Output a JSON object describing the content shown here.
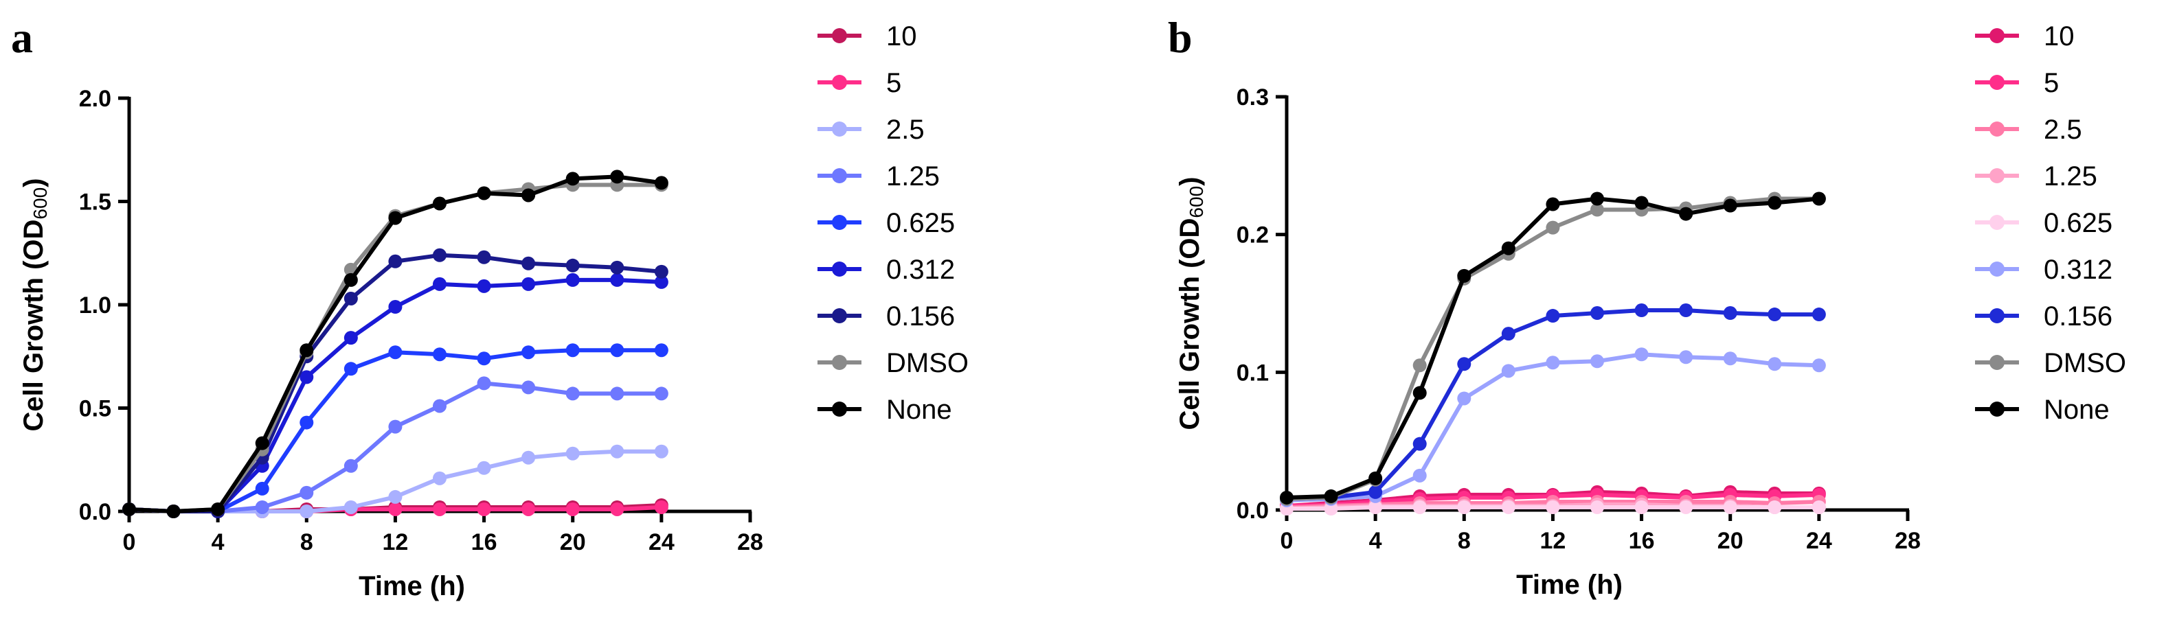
{
  "chart_data": [
    {
      "panel": "a",
      "type": "line",
      "xlabel": "Time (h)",
      "ylabel": "Cell Growth (OD",
      "ylabel_sub": "600",
      "ylabel_close": ")",
      "xlim": [
        0,
        28
      ],
      "ylim": [
        0,
        2.0
      ],
      "xticks": [
        0,
        4,
        8,
        12,
        16,
        20,
        24,
        28
      ],
      "yticks": [
        0.0,
        0.5,
        1.0,
        1.5,
        2.0
      ],
      "ytick_labels": [
        "0.0",
        "0.5",
        "1.0",
        "1.5",
        "2.0"
      ],
      "legend_position": "right",
      "x": [
        0,
        2,
        4,
        6,
        8,
        10,
        12,
        14,
        16,
        18,
        20,
        22,
        24
      ],
      "series": [
        {
          "name": "10",
          "color": "#c2185b",
          "values": [
            0.01,
            0.0,
            0.0,
            0.0,
            0.01,
            0.01,
            0.02,
            0.02,
            0.02,
            0.02,
            0.02,
            0.02,
            0.03
          ]
        },
        {
          "name": "5",
          "color": "#ff2d8a",
          "values": [
            0.01,
            0.0,
            0.0,
            0.0,
            0.0,
            0.01,
            0.01,
            0.01,
            0.01,
            0.01,
            0.01,
            0.01,
            0.02
          ]
        },
        {
          "name": "2.5",
          "color": "#a9b0ff",
          "values": [
            0.01,
            0.0,
            0.0,
            0.0,
            0.0,
            0.02,
            0.07,
            0.16,
            0.21,
            0.26,
            0.28,
            0.29,
            0.29
          ]
        },
        {
          "name": "1.25",
          "color": "#6e78ff",
          "values": [
            0.01,
            0.0,
            0.0,
            0.02,
            0.09,
            0.22,
            0.41,
            0.51,
            0.62,
            0.6,
            0.57,
            0.57,
            0.57
          ]
        },
        {
          "name": "0.625",
          "color": "#1f3dff",
          "values": [
            0.01,
            0.0,
            0.0,
            0.11,
            0.43,
            0.69,
            0.77,
            0.76,
            0.74,
            0.77,
            0.78,
            0.78,
            0.78
          ]
        },
        {
          "name": "0.312",
          "color": "#1a1ad6",
          "values": [
            0.01,
            0.0,
            0.0,
            0.22,
            0.65,
            0.84,
            0.99,
            1.1,
            1.09,
            1.1,
            1.12,
            1.12,
            1.11
          ]
        },
        {
          "name": "0.156",
          "color": "#1a1a8c",
          "values": [
            0.01,
            0.0,
            0.0,
            0.26,
            0.75,
            1.03,
            1.21,
            1.24,
            1.23,
            1.2,
            1.19,
            1.18,
            1.16
          ]
        },
        {
          "name": "DMSO",
          "color": "#8a8a8a",
          "values": [
            0.01,
            0.0,
            0.01,
            0.3,
            0.77,
            1.17,
            1.43,
            1.49,
            1.54,
            1.56,
            1.58,
            1.58,
            1.58
          ]
        },
        {
          "name": "None",
          "color": "#000000",
          "values": [
            0.01,
            0.0,
            0.01,
            0.33,
            0.78,
            1.12,
            1.42,
            1.49,
            1.54,
            1.53,
            1.61,
            1.62,
            1.59
          ]
        }
      ]
    },
    {
      "panel": "b",
      "type": "line",
      "xlabel": "Time (h)",
      "ylabel": "Cell Growth (OD",
      "ylabel_sub": "600",
      "ylabel_close": ")",
      "xlim": [
        0,
        28
      ],
      "ylim": [
        0,
        0.3
      ],
      "xticks": [
        0,
        4,
        8,
        12,
        16,
        20,
        24,
        28
      ],
      "yticks": [
        0.0,
        0.1,
        0.2,
        0.3
      ],
      "ytick_labels": [
        "0.0",
        "0.1",
        "0.2",
        "0.3"
      ],
      "legend_position": "right",
      "x": [
        0,
        2,
        4,
        6,
        8,
        10,
        12,
        14,
        16,
        18,
        20,
        22,
        24
      ],
      "series": [
        {
          "name": "10",
          "color": "#e0186e",
          "values": [
            0.003,
            0.005,
            0.007,
            0.01,
            0.011,
            0.011,
            0.011,
            0.013,
            0.012,
            0.01,
            0.013,
            0.012,
            0.012
          ]
        },
        {
          "name": "5",
          "color": "#ff2d8a",
          "values": [
            0.003,
            0.004,
            0.006,
            0.008,
            0.009,
            0.009,
            0.01,
            0.011,
            0.01,
            0.009,
            0.011,
            0.01,
            0.011
          ]
        },
        {
          "name": "2.5",
          "color": "#ff7aa8",
          "values": [
            0.002,
            0.003,
            0.004,
            0.005,
            0.005,
            0.005,
            0.006,
            0.006,
            0.006,
            0.006,
            0.006,
            0.005,
            0.006
          ]
        },
        {
          "name": "1.25",
          "color": "#ffa3c8",
          "values": [
            0.001,
            0.002,
            0.003,
            0.003,
            0.003,
            0.003,
            0.003,
            0.004,
            0.004,
            0.003,
            0.003,
            0.002,
            0.002
          ]
        },
        {
          "name": "0.625",
          "color": "#ffd0ec",
          "values": [
            0.001,
            0.001,
            0.002,
            0.002,
            0.002,
            0.002,
            0.002,
            0.002,
            0.002,
            0.002,
            0.002,
            0.002,
            0.002
          ]
        },
        {
          "name": "0.312",
          "color": "#9aa2ff",
          "values": [
            0.007,
            0.008,
            0.01,
            0.025,
            0.081,
            0.101,
            0.107,
            0.108,
            0.113,
            0.111,
            0.11,
            0.106,
            0.105
          ]
        },
        {
          "name": "0.156",
          "color": "#1f2bd6",
          "values": [
            0.008,
            0.009,
            0.013,
            0.048,
            0.106,
            0.128,
            0.141,
            0.143,
            0.145,
            0.145,
            0.143,
            0.142,
            0.142
          ]
        },
        {
          "name": "DMSO",
          "color": "#8a8a8a",
          "values": [
            0.008,
            0.009,
            0.022,
            0.105,
            0.168,
            0.186,
            0.205,
            0.218,
            0.218,
            0.219,
            0.223,
            0.226,
            0.226
          ]
        },
        {
          "name": "None",
          "color": "#000000",
          "values": [
            0.009,
            0.01,
            0.023,
            0.085,
            0.17,
            0.19,
            0.222,
            0.226,
            0.223,
            0.215,
            0.221,
            0.223,
            0.226
          ]
        }
      ]
    }
  ]
}
